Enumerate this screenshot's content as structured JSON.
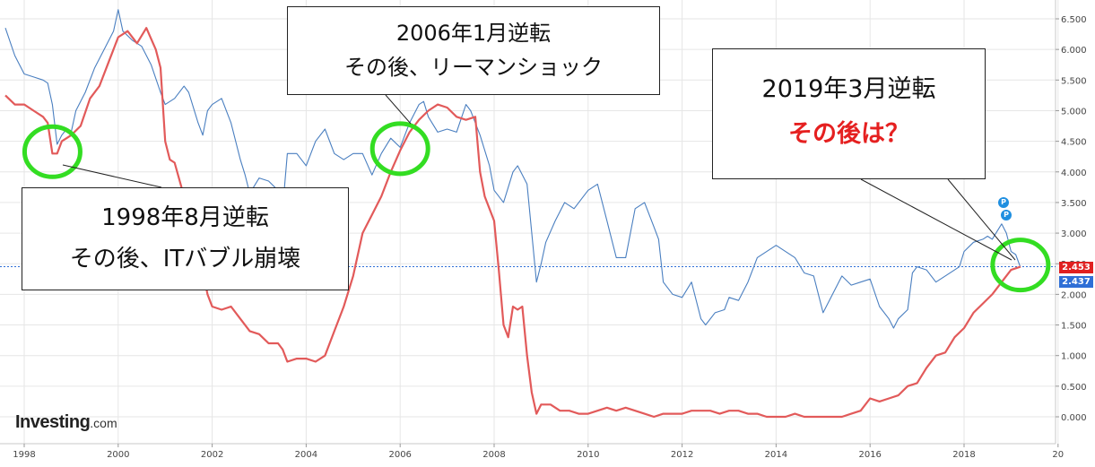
{
  "brand": {
    "name": "Investing",
    "domain": ".com"
  },
  "colors": {
    "ten_year": "#4a7fc0",
    "two_year": "#e25a5a",
    "circle": "#33dd22",
    "grid": "#e6e6e6"
  },
  "price_tags": {
    "two_year_last": "2.453",
    "ten_year_last": "2.437"
  },
  "markers": [
    "P",
    "P"
  ],
  "callouts": {
    "c1998": {
      "line1": "1998年8月逆転",
      "line2": "その後、ITバブル崩壊"
    },
    "c2006": {
      "line1": "2006年1月逆転",
      "line2": "その後、リーマンショック"
    },
    "c2019": {
      "line1": "2019年3月逆転",
      "line2": "その後は？"
    }
  },
  "chart_data": {
    "type": "line",
    "xlim": [
      1997.6,
      2020.0
    ],
    "ylim": [
      -0.2,
      6.8
    ],
    "x_ticks": [
      "1998",
      "2000",
      "2002",
      "2004",
      "2006",
      "2008",
      "2010",
      "2012",
      "2014",
      "2016",
      "2018",
      "20"
    ],
    "y_ticks": [
      "0.000",
      "0.500",
      "1.000",
      "1.500",
      "2.000",
      "2.500",
      "3.000",
      "3.500",
      "4.000",
      "4.500",
      "5.000",
      "5.500",
      "6.000",
      "6.500"
    ],
    "reference_line": 2.453,
    "grid": true,
    "legend": "none",
    "series": [
      {
        "color": "#4a7fc0",
        "points": [
          [
            1997.6,
            6.35
          ],
          [
            1997.8,
            5.9
          ],
          [
            1998.0,
            5.6
          ],
          [
            1998.2,
            5.55
          ],
          [
            1998.4,
            5.5
          ],
          [
            1998.5,
            5.45
          ],
          [
            1998.6,
            5.1
          ],
          [
            1998.7,
            4.45
          ],
          [
            1998.8,
            4.6
          ],
          [
            1998.9,
            4.7
          ],
          [
            1999.0,
            4.65
          ],
          [
            1999.1,
            5.0
          ],
          [
            1999.3,
            5.3
          ],
          [
            1999.5,
            5.7
          ],
          [
            1999.7,
            6.0
          ],
          [
            1999.9,
            6.3
          ],
          [
            2000.0,
            6.65
          ],
          [
            2000.1,
            6.3
          ],
          [
            2000.3,
            6.15
          ],
          [
            2000.5,
            6.05
          ],
          [
            2000.7,
            5.75
          ],
          [
            2000.9,
            5.3
          ],
          [
            2001.0,
            5.1
          ],
          [
            2001.2,
            5.2
          ],
          [
            2001.4,
            5.4
          ],
          [
            2001.5,
            5.3
          ],
          [
            2001.7,
            4.8
          ],
          [
            2001.8,
            4.6
          ],
          [
            2001.9,
            5.0
          ],
          [
            2002.0,
            5.1
          ],
          [
            2002.2,
            5.2
          ],
          [
            2002.4,
            4.8
          ],
          [
            2002.6,
            4.2
          ],
          [
            2002.7,
            3.95
          ],
          [
            2002.8,
            3.65
          ],
          [
            2003.0,
            3.9
          ],
          [
            2003.2,
            3.85
          ],
          [
            2003.4,
            3.7
          ],
          [
            2003.5,
            3.4
          ],
          [
            2003.6,
            4.3
          ],
          [
            2003.8,
            4.3
          ],
          [
            2004.0,
            4.1
          ],
          [
            2004.2,
            4.5
          ],
          [
            2004.4,
            4.7
          ],
          [
            2004.6,
            4.3
          ],
          [
            2004.8,
            4.2
          ],
          [
            2005.0,
            4.3
          ],
          [
            2005.2,
            4.3
          ],
          [
            2005.4,
            3.95
          ],
          [
            2005.6,
            4.3
          ],
          [
            2005.8,
            4.55
          ],
          [
            2006.0,
            4.4
          ],
          [
            2006.2,
            4.8
          ],
          [
            2006.4,
            5.1
          ],
          [
            2006.5,
            5.15
          ],
          [
            2006.6,
            4.9
          ],
          [
            2006.8,
            4.65
          ],
          [
            2007.0,
            4.7
          ],
          [
            2007.2,
            4.65
          ],
          [
            2007.4,
            5.1
          ],
          [
            2007.5,
            5.0
          ],
          [
            2007.7,
            4.6
          ],
          [
            2007.9,
            4.1
          ],
          [
            2008.0,
            3.7
          ],
          [
            2008.2,
            3.5
          ],
          [
            2008.4,
            4.0
          ],
          [
            2008.5,
            4.1
          ],
          [
            2008.7,
            3.8
          ],
          [
            2008.9,
            2.2
          ],
          [
            2009.0,
            2.5
          ],
          [
            2009.1,
            2.85
          ],
          [
            2009.3,
            3.2
          ],
          [
            2009.5,
            3.5
          ],
          [
            2009.7,
            3.4
          ],
          [
            2009.9,
            3.6
          ],
          [
            2010.0,
            3.7
          ],
          [
            2010.2,
            3.8
          ],
          [
            2010.4,
            3.2
          ],
          [
            2010.6,
            2.6
          ],
          [
            2010.8,
            2.6
          ],
          [
            2011.0,
            3.4
          ],
          [
            2011.2,
            3.5
          ],
          [
            2011.4,
            3.1
          ],
          [
            2011.5,
            2.9
          ],
          [
            2011.6,
            2.2
          ],
          [
            2011.8,
            2.0
          ],
          [
            2012.0,
            1.95
          ],
          [
            2012.2,
            2.2
          ],
          [
            2012.4,
            1.6
          ],
          [
            2012.5,
            1.5
          ],
          [
            2012.7,
            1.7
          ],
          [
            2012.9,
            1.75
          ],
          [
            2013.0,
            1.95
          ],
          [
            2013.2,
            1.9
          ],
          [
            2013.4,
            2.2
          ],
          [
            2013.6,
            2.6
          ],
          [
            2013.8,
            2.7
          ],
          [
            2014.0,
            2.8
          ],
          [
            2014.2,
            2.7
          ],
          [
            2014.4,
            2.6
          ],
          [
            2014.6,
            2.35
          ],
          [
            2014.8,
            2.3
          ],
          [
            2015.0,
            1.7
          ],
          [
            2015.2,
            2.0
          ],
          [
            2015.4,
            2.3
          ],
          [
            2015.6,
            2.15
          ],
          [
            2015.8,
            2.2
          ],
          [
            2016.0,
            2.25
          ],
          [
            2016.2,
            1.8
          ],
          [
            2016.4,
            1.6
          ],
          [
            2016.5,
            1.45
          ],
          [
            2016.6,
            1.6
          ],
          [
            2016.8,
            1.75
          ],
          [
            2016.9,
            2.35
          ],
          [
            2017.0,
            2.45
          ],
          [
            2017.2,
            2.4
          ],
          [
            2017.4,
            2.2
          ],
          [
            2017.6,
            2.3
          ],
          [
            2017.8,
            2.4
          ],
          [
            2017.9,
            2.45
          ],
          [
            2018.0,
            2.7
          ],
          [
            2018.2,
            2.85
          ],
          [
            2018.4,
            2.9
          ],
          [
            2018.5,
            2.95
          ],
          [
            2018.6,
            2.9
          ],
          [
            2018.8,
            3.15
          ],
          [
            2018.9,
            3.0
          ],
          [
            2019.0,
            2.7
          ],
          [
            2019.1,
            2.65
          ],
          [
            2019.2,
            2.44
          ]
        ]
      },
      {
        "color": "#e25a5a",
        "points": [
          [
            1997.6,
            5.25
          ],
          [
            1997.8,
            5.1
          ],
          [
            1998.0,
            5.1
          ],
          [
            1998.2,
            5.0
          ],
          [
            1998.4,
            4.9
          ],
          [
            1998.5,
            4.8
          ],
          [
            1998.6,
            4.3
          ],
          [
            1998.7,
            4.3
          ],
          [
            1998.8,
            4.5
          ],
          [
            1998.9,
            4.55
          ],
          [
            1999.0,
            4.6
          ],
          [
            1999.2,
            4.75
          ],
          [
            1999.4,
            5.2
          ],
          [
            1999.6,
            5.4
          ],
          [
            1999.8,
            5.8
          ],
          [
            2000.0,
            6.2
          ],
          [
            2000.2,
            6.3
          ],
          [
            2000.4,
            6.1
          ],
          [
            2000.6,
            6.35
          ],
          [
            2000.8,
            6.0
          ],
          [
            2000.9,
            5.7
          ],
          [
            2001.0,
            4.5
          ],
          [
            2001.1,
            4.2
          ],
          [
            2001.2,
            4.15
          ],
          [
            2001.4,
            3.6
          ],
          [
            2001.6,
            3.0
          ],
          [
            2001.7,
            2.6
          ],
          [
            2001.8,
            2.4
          ],
          [
            2001.9,
            2.0
          ],
          [
            2002.0,
            1.8
          ],
          [
            2002.2,
            1.75
          ],
          [
            2002.4,
            1.8
          ],
          [
            2002.6,
            1.6
          ],
          [
            2002.8,
            1.4
          ],
          [
            2003.0,
            1.35
          ],
          [
            2003.2,
            1.2
          ],
          [
            2003.4,
            1.2
          ],
          [
            2003.5,
            1.1
          ],
          [
            2003.6,
            0.9
          ],
          [
            2003.8,
            0.95
          ],
          [
            2004.0,
            0.95
          ],
          [
            2004.2,
            0.9
          ],
          [
            2004.4,
            1.0
          ],
          [
            2004.6,
            1.4
          ],
          [
            2004.8,
            1.8
          ],
          [
            2005.0,
            2.3
          ],
          [
            2005.2,
            3.0
          ],
          [
            2005.4,
            3.3
          ],
          [
            2005.6,
            3.6
          ],
          [
            2005.8,
            4.0
          ],
          [
            2006.0,
            4.35
          ],
          [
            2006.2,
            4.65
          ],
          [
            2006.4,
            4.85
          ],
          [
            2006.6,
            5.0
          ],
          [
            2006.8,
            5.1
          ],
          [
            2007.0,
            5.05
          ],
          [
            2007.2,
            4.9
          ],
          [
            2007.4,
            4.85
          ],
          [
            2007.6,
            4.9
          ],
          [
            2007.7,
            4.0
          ],
          [
            2007.8,
            3.6
          ],
          [
            2008.0,
            3.2
          ],
          [
            2008.1,
            2.4
          ],
          [
            2008.2,
            1.5
          ],
          [
            2008.3,
            1.3
          ],
          [
            2008.4,
            1.8
          ],
          [
            2008.5,
            1.75
          ],
          [
            2008.6,
            1.8
          ],
          [
            2008.7,
            1.0
          ],
          [
            2008.8,
            0.4
          ],
          [
            2008.9,
            0.05
          ],
          [
            2009.0,
            0.2
          ],
          [
            2009.2,
            0.2
          ],
          [
            2009.4,
            0.1
          ],
          [
            2009.6,
            0.1
          ],
          [
            2009.8,
            0.05
          ],
          [
            2010.0,
            0.05
          ],
          [
            2010.2,
            0.1
          ],
          [
            2010.4,
            0.15
          ],
          [
            2010.6,
            0.1
          ],
          [
            2010.8,
            0.15
          ],
          [
            2011.0,
            0.1
          ],
          [
            2011.2,
            0.05
          ],
          [
            2011.4,
            0.0
          ],
          [
            2011.6,
            0.05
          ],
          [
            2011.8,
            0.05
          ],
          [
            2012.0,
            0.05
          ],
          [
            2012.2,
            0.1
          ],
          [
            2012.4,
            0.1
          ],
          [
            2012.6,
            0.1
          ],
          [
            2012.8,
            0.05
          ],
          [
            2013.0,
            0.1
          ],
          [
            2013.2,
            0.1
          ],
          [
            2013.4,
            0.05
          ],
          [
            2013.6,
            0.05
          ],
          [
            2013.8,
            0.0
          ],
          [
            2014.0,
            0.0
          ],
          [
            2014.2,
            0.0
          ],
          [
            2014.4,
            0.05
          ],
          [
            2014.6,
            0.0
          ],
          [
            2014.8,
            0.0
          ],
          [
            2015.0,
            0.0
          ],
          [
            2015.2,
            0.0
          ],
          [
            2015.4,
            0.0
          ],
          [
            2015.6,
            0.05
          ],
          [
            2015.8,
            0.1
          ],
          [
            2016.0,
            0.3
          ],
          [
            2016.2,
            0.25
          ],
          [
            2016.4,
            0.3
          ],
          [
            2016.6,
            0.35
          ],
          [
            2016.8,
            0.5
          ],
          [
            2017.0,
            0.55
          ],
          [
            2017.2,
            0.8
          ],
          [
            2017.4,
            1.0
          ],
          [
            2017.6,
            1.05
          ],
          [
            2017.8,
            1.3
          ],
          [
            2018.0,
            1.45
          ],
          [
            2018.2,
            1.7
          ],
          [
            2018.4,
            1.85
          ],
          [
            2018.6,
            2.0
          ],
          [
            2018.8,
            2.2
          ],
          [
            2019.0,
            2.4
          ],
          [
            2019.2,
            2.45
          ]
        ]
      }
    ],
    "highlight_circles": [
      1998.6,
      2006.0,
      2019.2
    ]
  }
}
